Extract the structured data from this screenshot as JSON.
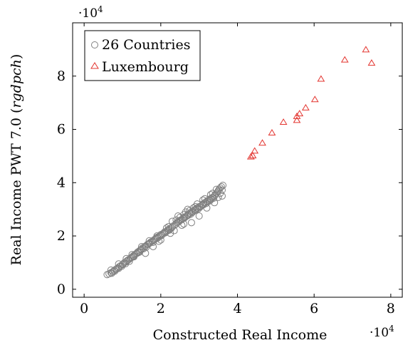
{
  "chart_data": {
    "type": "scatter",
    "title": "",
    "xlabel": "Constructed Real Income",
    "ylabel_main": "Real Income PWT 7.0 (",
    "ylabel_italic": "rgdpch",
    "ylabel_close": ")",
    "x_multiplier": "·10",
    "y_multiplier": "·10",
    "multiplier_exponent": "4",
    "xlim": [
      -0.3,
      8.3
    ],
    "ylim": [
      -0.3,
      10.0
    ],
    "xticks": [
      0,
      2,
      4,
      6,
      8
    ],
    "yticks": [
      0,
      2,
      4,
      6,
      8
    ],
    "legend": {
      "position": "top-left",
      "entries": [
        "26 Countries",
        "Luxembourg"
      ]
    },
    "series": [
      {
        "name": "26 Countries",
        "marker": "circle",
        "color": "#808080",
        "points": [
          [
            0.6,
            0.55
          ],
          [
            0.65,
            0.58
          ],
          [
            0.7,
            0.62
          ],
          [
            0.72,
            0.6
          ],
          [
            0.75,
            0.66
          ],
          [
            0.78,
            0.7
          ],
          [
            0.8,
            0.68
          ],
          [
            0.82,
            0.74
          ],
          [
            0.85,
            0.77
          ],
          [
            0.88,
            0.8
          ],
          [
            0.9,
            0.78
          ],
          [
            0.92,
            0.85
          ],
          [
            0.95,
            0.88
          ],
          [
            0.98,
            0.86
          ],
          [
            1.0,
            0.92
          ],
          [
            1.02,
            0.95
          ],
          [
            1.05,
            1.0
          ],
          [
            1.08,
            0.96
          ],
          [
            1.1,
            1.03
          ],
          [
            1.12,
            1.07
          ],
          [
            1.15,
            1.1
          ],
          [
            1.18,
            1.05
          ],
          [
            1.2,
            1.15
          ],
          [
            1.22,
            1.18
          ],
          [
            1.25,
            1.2
          ],
          [
            1.28,
            1.25
          ],
          [
            1.3,
            1.22
          ],
          [
            1.32,
            1.3
          ],
          [
            1.35,
            1.33
          ],
          [
            1.38,
            1.35
          ],
          [
            1.4,
            1.4
          ],
          [
            1.42,
            1.38
          ],
          [
            1.45,
            1.45
          ],
          [
            1.48,
            1.48
          ],
          [
            1.5,
            1.5
          ],
          [
            1.52,
            1.55
          ],
          [
            1.55,
            1.52
          ],
          [
            1.58,
            1.6
          ],
          [
            1.6,
            1.62
          ],
          [
            1.62,
            1.58
          ],
          [
            1.65,
            1.68
          ],
          [
            1.68,
            1.7
          ],
          [
            1.7,
            1.72
          ],
          [
            1.72,
            1.75
          ],
          [
            1.75,
            1.78
          ],
          [
            1.78,
            1.8
          ],
          [
            1.8,
            1.76
          ],
          [
            1.82,
            1.85
          ],
          [
            1.85,
            1.88
          ],
          [
            1.88,
            1.9
          ],
          [
            1.9,
            1.95
          ],
          [
            1.92,
            1.92
          ],
          [
            1.95,
            1.98
          ],
          [
            1.98,
            2.0
          ],
          [
            2.0,
            2.05
          ],
          [
            2.02,
            2.02
          ],
          [
            2.05,
            2.08
          ],
          [
            2.08,
            2.1
          ],
          [
            2.1,
            2.15
          ],
          [
            2.12,
            2.12
          ],
          [
            2.15,
            2.18
          ],
          [
            2.18,
            2.2
          ],
          [
            2.2,
            2.25
          ],
          [
            2.22,
            2.22
          ],
          [
            2.25,
            2.28
          ],
          [
            2.28,
            2.3
          ],
          [
            2.3,
            2.35
          ],
          [
            2.35,
            2.4
          ],
          [
            2.4,
            2.45
          ],
          [
            2.42,
            2.5
          ],
          [
            2.45,
            2.52
          ],
          [
            2.48,
            2.55
          ],
          [
            2.5,
            2.58
          ],
          [
            2.52,
            2.6
          ],
          [
            2.55,
            2.62
          ],
          [
            2.58,
            2.65
          ],
          [
            2.6,
            2.7
          ],
          [
            2.62,
            2.68
          ],
          [
            2.65,
            2.72
          ],
          [
            2.68,
            2.75
          ],
          [
            2.7,
            2.8
          ],
          [
            2.72,
            2.78
          ],
          [
            2.75,
            2.85
          ],
          [
            2.78,
            2.82
          ],
          [
            2.8,
            2.9
          ],
          [
            2.82,
            2.88
          ],
          [
            2.85,
            2.92
          ],
          [
            2.88,
            2.95
          ],
          [
            2.9,
            3.0
          ],
          [
            2.92,
            2.98
          ],
          [
            2.95,
            3.05
          ],
          [
            2.98,
            3.02
          ],
          [
            3.0,
            3.1
          ],
          [
            3.02,
            3.08
          ],
          [
            3.05,
            3.12
          ],
          [
            3.08,
            3.15
          ],
          [
            3.1,
            3.2
          ],
          [
            3.12,
            3.18
          ],
          [
            3.15,
            3.25
          ],
          [
            3.18,
            3.22
          ],
          [
            3.2,
            3.3
          ],
          [
            3.22,
            3.28
          ],
          [
            3.25,
            3.35
          ],
          [
            3.28,
            3.32
          ],
          [
            3.3,
            3.4
          ],
          [
            3.32,
            3.38
          ],
          [
            3.35,
            3.45
          ],
          [
            3.38,
            3.42
          ],
          [
            3.4,
            3.5
          ],
          [
            3.42,
            3.55
          ],
          [
            3.45,
            3.6
          ],
          [
            3.48,
            3.65
          ],
          [
            3.5,
            3.7
          ],
          [
            3.52,
            3.75
          ],
          [
            3.55,
            3.8
          ],
          [
            3.58,
            3.85
          ],
          [
            3.62,
            3.9
          ],
          [
            3.55,
            3.6
          ],
          [
            3.5,
            3.45
          ],
          [
            3.6,
            3.72
          ],
          [
            1.3,
            1.25
          ],
          [
            1.6,
            1.35
          ],
          [
            1.8,
            1.6
          ],
          [
            2.0,
            1.85
          ],
          [
            2.25,
            2.1
          ],
          [
            2.6,
            2.45
          ],
          [
            2.8,
            2.5
          ],
          [
            3.0,
            2.75
          ],
          [
            2.4,
            2.6
          ],
          [
            2.5,
            2.7
          ],
          [
            2.7,
            3.0
          ],
          [
            2.9,
            3.1
          ],
          [
            3.1,
            3.35
          ],
          [
            3.3,
            3.55
          ],
          [
            3.45,
            3.75
          ],
          [
            2.2,
            2.35
          ],
          [
            1.9,
            2.0
          ],
          [
            1.7,
            1.82
          ],
          [
            1.5,
            1.6
          ],
          [
            1.1,
            1.15
          ],
          [
            0.9,
            0.95
          ],
          [
            0.7,
            0.72
          ],
          [
            2.6,
            2.8
          ],
          [
            2.75,
            2.95
          ],
          [
            3.6,
            3.5
          ],
          [
            3.4,
            3.25
          ],
          [
            3.2,
            3.05
          ],
          [
            2.55,
            2.4
          ],
          [
            2.35,
            2.2
          ],
          [
            1.95,
            1.8
          ],
          [
            1.45,
            1.4
          ],
          [
            1.25,
            1.3
          ],
          [
            3.35,
            3.6
          ],
          [
            3.15,
            3.4
          ],
          [
            2.95,
            3.2
          ],
          [
            2.85,
            3.05
          ],
          [
            2.65,
            2.9
          ],
          [
            2.45,
            2.75
          ],
          [
            2.3,
            2.55
          ],
          [
            2.15,
            2.3
          ]
        ]
      },
      {
        "name": "Luxembourg",
        "marker": "triangle",
        "color": "#e3342f",
        "points": [
          [
            4.35,
            4.98
          ],
          [
            4.4,
            5.02
          ],
          [
            4.45,
            5.2
          ],
          [
            4.65,
            5.5
          ],
          [
            4.9,
            5.88
          ],
          [
            5.2,
            6.28
          ],
          [
            5.55,
            6.35
          ],
          [
            5.55,
            6.5
          ],
          [
            5.62,
            6.6
          ],
          [
            5.78,
            6.82
          ],
          [
            6.02,
            7.13
          ],
          [
            6.18,
            7.9
          ],
          [
            6.8,
            8.62
          ],
          [
            7.35,
            9.0
          ],
          [
            7.5,
            8.5
          ]
        ]
      }
    ]
  }
}
